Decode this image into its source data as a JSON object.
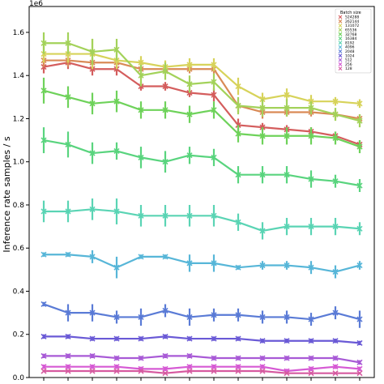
{
  "chart_data": {
    "type": "line",
    "title": "",
    "xlabel": "",
    "ylabel": "Inference rate samples / s",
    "y_offset_label": "1e6",
    "ylim": [
      0,
      1.72
    ],
    "xlim": [
      -0.6,
      13.6
    ],
    "yticks": [
      "0.0",
      "0.2",
      "0.4",
      "0.6",
      "0.8",
      "1.0",
      "1.2",
      "1.4",
      "1.6"
    ],
    "ytick_values": [
      0,
      0.2,
      0.4,
      0.6,
      0.8,
      1.0,
      1.2,
      1.4,
      1.6
    ],
    "x": [
      0,
      1,
      2,
      3,
      4,
      5,
      6,
      7,
      8,
      9,
      10,
      11,
      12,
      13
    ],
    "grid": false,
    "legend": {
      "title": "Batch size",
      "position": "top-right",
      "marker": "x"
    },
    "series": [
      {
        "name": "524288",
        "color": "#d45d5d",
        "values": [
          1.44,
          1.46,
          1.43,
          1.43,
          1.35,
          1.35,
          1.32,
          1.31,
          1.17,
          1.16,
          1.15,
          1.14,
          1.12,
          1.08
        ],
        "err": [
          0.03,
          0.03,
          0.03,
          0.03,
          0.02,
          0.02,
          0.02,
          0.03,
          0.03,
          0.02,
          0.02,
          0.02,
          0.02,
          0.02
        ]
      },
      {
        "name": "262144",
        "color": "#d98a56",
        "values": [
          1.47,
          1.47,
          1.46,
          1.46,
          1.43,
          1.43,
          1.43,
          1.43,
          1.26,
          1.23,
          1.23,
          1.23,
          1.22,
          1.2
        ],
        "err": [
          0.03,
          0.03,
          0.02,
          0.02,
          0.02,
          0.02,
          0.02,
          0.02,
          0.03,
          0.03,
          0.02,
          0.02,
          0.02,
          0.02
        ]
      },
      {
        "name": "131072",
        "color": "#d7d35a",
        "values": [
          1.5,
          1.5,
          1.5,
          1.47,
          1.46,
          1.44,
          1.45,
          1.45,
          1.35,
          1.29,
          1.31,
          1.28,
          1.28,
          1.27
        ],
        "err": [
          0.04,
          0.04,
          0.07,
          0.04,
          0.03,
          0.03,
          0.03,
          0.03,
          0.04,
          0.03,
          0.03,
          0.03,
          0.02,
          0.02
        ]
      },
      {
        "name": "65536",
        "color": "#a3d25a",
        "values": [
          1.55,
          1.55,
          1.51,
          1.52,
          1.4,
          1.42,
          1.36,
          1.37,
          1.26,
          1.25,
          1.25,
          1.25,
          1.22,
          1.19
        ],
        "err": [
          0.05,
          0.05,
          0.06,
          0.05,
          0.05,
          0.04,
          0.04,
          0.04,
          0.04,
          0.04,
          0.04,
          0.03,
          0.03,
          0.03
        ]
      },
      {
        "name": "32768",
        "color": "#6ed25a",
        "values": [
          1.33,
          1.3,
          1.27,
          1.28,
          1.24,
          1.24,
          1.22,
          1.24,
          1.13,
          1.12,
          1.12,
          1.12,
          1.11,
          1.07
        ],
        "err": [
          0.06,
          0.05,
          0.05,
          0.05,
          0.04,
          0.04,
          0.04,
          0.04,
          0.04,
          0.04,
          0.04,
          0.04,
          0.03,
          0.03
        ]
      },
      {
        "name": "16384",
        "color": "#59d47e",
        "values": [
          1.1,
          1.08,
          1.04,
          1.05,
          1.02,
          1.0,
          1.03,
          1.02,
          0.94,
          0.94,
          0.94,
          0.92,
          0.91,
          0.89
        ],
        "err": [
          0.06,
          0.06,
          0.05,
          0.04,
          0.05,
          0.05,
          0.04,
          0.04,
          0.04,
          0.04,
          0.04,
          0.04,
          0.03,
          0.03
        ]
      },
      {
        "name": "8192",
        "color": "#5ad4b4",
        "values": [
          0.77,
          0.77,
          0.78,
          0.77,
          0.75,
          0.75,
          0.75,
          0.75,
          0.72,
          0.68,
          0.7,
          0.7,
          0.7,
          0.69
        ],
        "err": [
          0.05,
          0.05,
          0.05,
          0.06,
          0.05,
          0.05,
          0.05,
          0.05,
          0.04,
          0.04,
          0.04,
          0.04,
          0.04,
          0.03
        ]
      },
      {
        "name": "4096",
        "color": "#57b6d8",
        "values": [
          0.57,
          0.57,
          0.56,
          0.51,
          0.56,
          0.56,
          0.53,
          0.53,
          0.51,
          0.52,
          0.52,
          0.51,
          0.49,
          0.52
        ],
        "err": [
          0.01,
          0.01,
          0.03,
          0.05,
          0.01,
          0.01,
          0.04,
          0.04,
          0.01,
          0.02,
          0.02,
          0.03,
          0.03,
          0.02
        ]
      },
      {
        "name": "2048",
        "color": "#5a7bd6",
        "values": [
          0.34,
          0.3,
          0.3,
          0.28,
          0.28,
          0.31,
          0.28,
          0.29,
          0.29,
          0.28,
          0.28,
          0.27,
          0.3,
          0.27
        ],
        "err": [
          0.01,
          0.04,
          0.04,
          0.03,
          0.04,
          0.03,
          0.04,
          0.03,
          0.03,
          0.03,
          0.03,
          0.03,
          0.03,
          0.04
        ]
      },
      {
        "name": "1024",
        "color": "#6a5ad6",
        "values": [
          0.19,
          0.19,
          0.18,
          0.18,
          0.18,
          0.19,
          0.18,
          0.18,
          0.18,
          0.17,
          0.17,
          0.17,
          0.17,
          0.16
        ],
        "err": [
          0.01,
          0.01,
          0.01,
          0.01,
          0.01,
          0.01,
          0.01,
          0.01,
          0.01,
          0.01,
          0.01,
          0.01,
          0.01,
          0.01
        ]
      },
      {
        "name": "512",
        "color": "#a85ad6",
        "values": [
          0.1,
          0.1,
          0.1,
          0.09,
          0.09,
          0.1,
          0.1,
          0.09,
          0.09,
          0.09,
          0.09,
          0.09,
          0.09,
          0.07
        ],
        "err": [
          0.01,
          0.01,
          0.01,
          0.01,
          0.01,
          0.01,
          0.01,
          0.01,
          0.01,
          0.01,
          0.01,
          0.01,
          0.01,
          0.01
        ]
      },
      {
        "name": "256",
        "color": "#d65ad4",
        "values": [
          0.05,
          0.05,
          0.05,
          0.05,
          0.04,
          0.04,
          0.05,
          0.05,
          0.05,
          0.05,
          0.03,
          0.04,
          0.05,
          0.04
        ],
        "err": [
          0.01,
          0.01,
          0.01,
          0.01,
          0.01,
          0.01,
          0.01,
          0.01,
          0.01,
          0.01,
          0.01,
          0.01,
          0.01,
          0.01
        ]
      },
      {
        "name": "128",
        "color": "#d65aa0",
        "values": [
          0.03,
          0.03,
          0.03,
          0.03,
          0.03,
          0.02,
          0.03,
          0.03,
          0.03,
          0.03,
          0.02,
          0.02,
          0.02,
          0.02
        ],
        "err": [
          0.005,
          0.005,
          0.005,
          0.005,
          0.005,
          0.005,
          0.005,
          0.005,
          0.005,
          0.005,
          0.005,
          0.005,
          0.005,
          0.005
        ]
      }
    ]
  }
}
